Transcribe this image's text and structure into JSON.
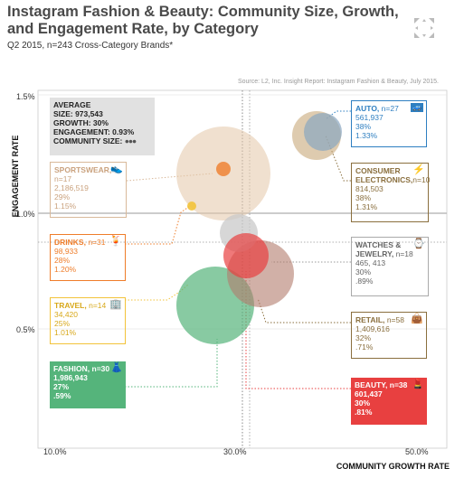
{
  "header": {
    "title": "Instagram Fashion & Beauty: Community Size, Growth, and Engagement Rate, by Category",
    "subtitle": "Q2 2015, n=243 Cross-Category Brands*",
    "source": "Source: L2, Inc. Insight Report: Instagram Fashion & Beauty, July 2015."
  },
  "chart_data": {
    "type": "scatter",
    "title": "Instagram Fashion & Beauty: Community Size, Growth, and Engagement Rate, by Category",
    "xlabel": "COMMUNITY GROWTH RATE",
    "ylabel": "ENGAGEMENT RATE",
    "x_ticks": [
      "10.0%",
      "30.0%",
      "50.0%"
    ],
    "y_ticks": [
      "1.5%",
      "1.0%",
      "0.5%"
    ],
    "xlim": [
      10,
      50
    ],
    "ylim": [
      0.0,
      1.5
    ],
    "average": {
      "x": 30,
      "y": 0.93,
      "size": 973543
    },
    "series": [
      {
        "category": "AUTO",
        "n": "n=27",
        "size": 561937,
        "growth": 38,
        "engagement": 1.33,
        "size_label": "561,937",
        "growth_label": "38%",
        "engagement_label": "1.33%",
        "color": "#2e7fc1"
      },
      {
        "category": "CONSUMER ELECTRONICS",
        "n": "n=10",
        "size": 814503,
        "growth": 38,
        "engagement": 1.31,
        "size_label": "814,503",
        "growth_label": "38%",
        "engagement_label": "1.31%",
        "color": "#8a6f3e"
      },
      {
        "category": "SPORTSWEAR",
        "n": "n=17",
        "size": 2186519,
        "growth": 29,
        "engagement": 1.15,
        "size_label": "2,186,519",
        "growth_label": "29%",
        "engagement_label": "1.15%",
        "color": "#d9b99a"
      },
      {
        "category": "DRINKS",
        "n": "n=31",
        "size": 98933,
        "growth": 28,
        "engagement": 1.2,
        "size_label": "98,933",
        "growth_label": "28%",
        "engagement_label": "1.20%",
        "color": "#ef7d2a"
      },
      {
        "category": "WATCHES & JEWELRY",
        "n": "n=18",
        "size": 465413,
        "growth": 30,
        "engagement": 0.89,
        "size_label": "465, 413",
        "growth_label": "30%",
        "engagement_label": ".89%",
        "color": "#c9c9c9"
      },
      {
        "category": "TRAVEL",
        "n": "n=14",
        "size": 34420,
        "growth": 25,
        "engagement": 1.01,
        "size_label": "34,420",
        "growth_label": "25%",
        "engagement_label": "1.01%",
        "color": "#f2c33a"
      },
      {
        "category": "RETAIL",
        "n": "n=58",
        "size": 1409616,
        "growth": 32,
        "engagement": 0.71,
        "size_label": "1,409,616",
        "growth_label": "32%",
        "engagement_label": ".71%",
        "color": "#b37b6c"
      },
      {
        "category": "FASHION",
        "n": "n=30",
        "size": 1986943,
        "growth": 27,
        "engagement": 0.59,
        "size_label": "1,986,943",
        "growth_label": "27%",
        "engagement_label": ".59%",
        "color": "#55b47b"
      },
      {
        "category": "BEAUTY",
        "n": "n=38",
        "size": 601437,
        "growth": 30,
        "engagement": 0.81,
        "size_label": "601,437",
        "growth_label": "30%",
        "engagement_label": ".81%",
        "color": "#e84040"
      }
    ]
  },
  "legend_box": {
    "heading": "AVERAGE",
    "size": "SIZE: 973,543",
    "growth": "GROWTH: 30%",
    "engagement": "ENGAGEMENT: 0.93%",
    "community": "COMMUNITY SIZE:"
  },
  "boxes": {
    "auto": {
      "name": "AUTO,",
      "n": "n=27",
      "l1": "561,937",
      "l2": "38%",
      "l3": "1.33%"
    },
    "ce": {
      "name1": "CONSUMER",
      "name2": "ELECTRONICS,",
      "n": "n=10",
      "l1": "814,503",
      "l2": "38%",
      "l3": "1.31%"
    },
    "sportswear": {
      "name": "SPORTSWEAR,",
      "n": "n=17",
      "l1": "2,186,519",
      "l2": "29%",
      "l3": "1.15%"
    },
    "drinks": {
      "name": "DRINKS,",
      "n": "n=31",
      "l1": "98,933",
      "l2": "28%",
      "l3": "1.20%"
    },
    "watches": {
      "name1": "WATCHES &",
      "name2": "JEWELRY,",
      "n": "n=18",
      "l1": "465, 413",
      "l2": "30%",
      "l3": ".89%"
    },
    "travel": {
      "name": "TRAVEL,",
      "n": "n=14",
      "l1": "34,420",
      "l2": "25%",
      "l3": "1.01%"
    },
    "retail": {
      "name": "RETAIL,",
      "n": "n=58",
      "l1": "1,409,616",
      "l2": "32%",
      "l3": ".71%"
    },
    "fashion": {
      "name": "FASHION,",
      "n": "n=30",
      "l1": "1,986,943",
      "l2": "27%",
      "l3": ".59%"
    },
    "beauty": {
      "name": "BEAUTY,",
      "n": "n=38",
      "l1": "601,437",
      "l2": "30%",
      "l3": ".81%"
    }
  },
  "icons": [
    "expand-icon",
    "car-icon",
    "plug-icon",
    "shoe-icon",
    "drink-icon",
    "watch-icon",
    "building-icon",
    "handbag-icon",
    "dress-icon",
    "lipstick-icon"
  ]
}
